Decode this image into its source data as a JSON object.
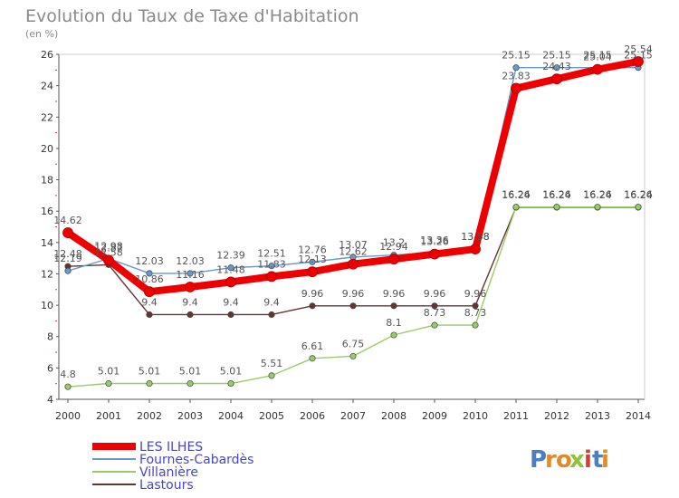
{
  "chart_data": {
    "type": "line",
    "title": "Evolution du Taux de Taxe d'Habitation",
    "subtitle": "(en %)",
    "xlabel": "",
    "ylabel": "",
    "ylim": [
      4,
      26
    ],
    "yticks": [
      4,
      6,
      8,
      10,
      12,
      14,
      16,
      18,
      20,
      22,
      24,
      26
    ],
    "x": [
      "2000",
      "2001",
      "2002",
      "2003",
      "2004",
      "2005",
      "2006",
      "2007",
      "2008",
      "2009",
      "2010",
      "2011",
      "2012",
      "2013",
      "2014"
    ],
    "legend_position": "bottom-left",
    "grid": false,
    "series": [
      {
        "name": "LES ILHES",
        "color": "#ee0000",
        "values": [
          14.62,
          12.87,
          10.86,
          11.16,
          11.48,
          11.83,
          12.13,
          12.62,
          12.94,
          13.26,
          13.58,
          23.83,
          24.43,
          25.04,
          25.54
        ],
        "labels": [
          "14.62",
          "12.87",
          "10.86",
          "11.16",
          "11.48",
          "11.83",
          "12.13",
          "12.62",
          "12.94",
          "13.26",
          "13.58",
          "23.83",
          "24.43",
          "25.04",
          "25.54"
        ]
      },
      {
        "name": "Fournes-Cabardès",
        "color": "#6699cc",
        "values": [
          12.19,
          12.98,
          12.03,
          12.03,
          12.39,
          12.51,
          12.76,
          13.07,
          13.2,
          13.36,
          13.58,
          25.15,
          25.15,
          25.15,
          25.15
        ],
        "labels": [
          "12.19",
          "12.98",
          "12.03",
          "12.03",
          "12.39",
          "12.51",
          "12.76",
          "13.07",
          "13.2",
          "13.36",
          "13.58",
          "25.15",
          "25.15",
          "25.15",
          "25.15"
        ]
      },
      {
        "name": "Villanière",
        "color": "#99cc66",
        "values": [
          4.8,
          5.01,
          5.01,
          5.01,
          5.01,
          5.51,
          6.61,
          6.75,
          8.1,
          8.73,
          8.73,
          16.26,
          16.26,
          16.26,
          16.26
        ],
        "labels": [
          "4.8",
          "5.01",
          "5.01",
          "5.01",
          "5.01",
          "5.51",
          "6.61",
          "6.75",
          "8.1",
          "8.73",
          "8.73",
          "16.26",
          "16.26",
          "16.26",
          "16.26"
        ]
      },
      {
        "name": "Lastours",
        "color": "#663333",
        "values": [
          12.48,
          12.58,
          9.4,
          9.4,
          9.4,
          9.4,
          9.96,
          9.96,
          9.96,
          9.96,
          9.96,
          16.24,
          16.24,
          16.24,
          16.24
        ],
        "labels": [
          "12.48",
          "12.58",
          "9.4",
          "9.4",
          "9.4",
          "9.4",
          "9.96",
          "9.96",
          "9.96",
          "9.96",
          "9.96",
          "16.24",
          "16.24",
          "16.24",
          "16.24"
        ]
      }
    ]
  },
  "logo": {
    "letters": [
      "P",
      "r",
      "o",
      "x",
      "i",
      "t",
      "i"
    ],
    "colors": [
      "#4a7fc1",
      "#e08a2c",
      "#e08a2c",
      "#8fc33e",
      "#d93b3b",
      "#4a7fc1",
      "#e08a2c"
    ]
  }
}
